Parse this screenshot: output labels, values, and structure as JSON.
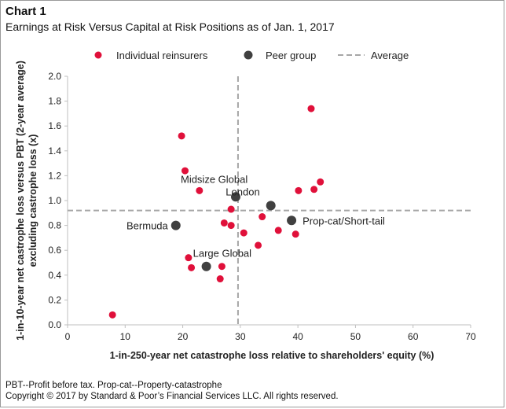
{
  "figure": {
    "label": "Chart 1",
    "title": "Earnings at Risk Versus Capital at Risk Positions as of Jan. 1, 2017",
    "footnote": "PBT--Profit before tax. Prop-cat--Property-catastrophe",
    "copyright": "Copyright © 2017 by Standard & Poor’s Financial Services LLC. All rights reserved."
  },
  "colors": {
    "individual": "#e0103a",
    "peer": "#404040",
    "average": "#a6a6a6",
    "axis": "#bfbfbf",
    "text": "#222222"
  },
  "chart_data": {
    "type": "scatter",
    "title": "Earnings at Risk Versus Capital at Risk Positions as of Jan. 1, 2017",
    "xlabel": "1-in-250-year net catastrophe loss relative to shareholders' equity (%)",
    "ylabel": [
      "1-in-10-year net castrophe loss versus PBT (2-year average)",
      "excluding castrophe loss (x)"
    ],
    "xlim": [
      0,
      70
    ],
    "ylim": [
      0,
      2.0
    ],
    "xticks": [
      "0",
      "10",
      "20",
      "30",
      "40",
      "50",
      "60",
      "70"
    ],
    "yticks": [
      "0.0",
      "0.2",
      "0.4",
      "0.6",
      "0.8",
      "1.0",
      "1.2",
      "1.4",
      "1.6",
      "1.8",
      "2.0"
    ],
    "grid": false,
    "legend_position": "top",
    "legend": [
      "Individual reinsurers",
      "Peer group",
      "Average"
    ],
    "series": [
      {
        "name": "Individual reinsurers",
        "points": [
          [
            7.8,
            0.08
          ],
          [
            19.8,
            1.52
          ],
          [
            20.4,
            1.24
          ],
          [
            21.0,
            0.54
          ],
          [
            21.5,
            0.46
          ],
          [
            22.9,
            1.08
          ],
          [
            26.5,
            0.37
          ],
          [
            26.8,
            0.47
          ],
          [
            27.2,
            0.82
          ],
          [
            28.4,
            0.93
          ],
          [
            28.4,
            0.8
          ],
          [
            30.6,
            0.74
          ],
          [
            33.1,
            0.64
          ],
          [
            33.8,
            0.87
          ],
          [
            36.6,
            0.76
          ],
          [
            39.6,
            0.73
          ],
          [
            40.1,
            1.08
          ],
          [
            42.3,
            1.74
          ],
          [
            42.8,
            1.09
          ],
          [
            43.9,
            1.15
          ]
        ]
      },
      {
        "name": "Peer group",
        "points": [
          {
            "x": 18.8,
            "y": 0.8,
            "label": "Bermuda"
          },
          {
            "x": 24.1,
            "y": 0.47,
            "label": "Large Global"
          },
          {
            "x": 29.2,
            "y": 1.03,
            "label": "Midsize Global"
          },
          {
            "x": 35.3,
            "y": 0.96,
            "label": "London"
          },
          {
            "x": 38.9,
            "y": 0.84,
            "label": "Prop-cat/Short-tail"
          }
        ]
      }
    ],
    "average": {
      "x": 29.6,
      "y": 0.92
    }
  }
}
